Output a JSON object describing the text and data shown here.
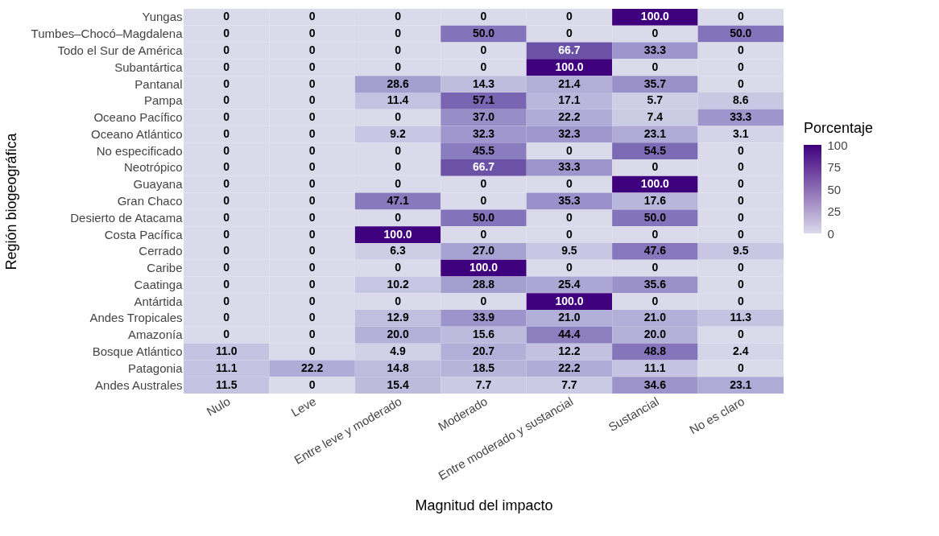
{
  "chart_data": {
    "type": "heatmap",
    "xlabel": "Magnitud del impacto",
    "ylabel": "Región biogeográfica",
    "legend_title": "Porcentaje",
    "categories": [
      "Nulo",
      "Leve",
      "Entre leve y moderado",
      "Moderado",
      "Entre moderado y sustancial",
      "Sustancial",
      "No es claro"
    ],
    "y_categories": [
      "Yungas",
      "Tumbes–Chocó–Magdalena",
      "Todo el Sur de América",
      "Subantártica",
      "Pantanal",
      "Pampa",
      "Oceano Pacífico",
      "Oceano Atlántico",
      "No especificado",
      "Neotrópico",
      "Guayana",
      "Gran Chaco",
      "Desierto de Atacama",
      "Costa Pacífica",
      "Cerrado",
      "Caribe",
      "Caatinga",
      "Antártida",
      "Andes Tropicales",
      "Amazonía",
      "Bosque Atlántico",
      "Patagonia",
      "Andes Australes"
    ],
    "cells": [
      [
        0,
        0,
        0,
        0,
        0,
        100,
        0
      ],
      [
        0,
        0,
        0,
        50,
        0,
        0,
        50
      ],
      [
        0,
        0,
        0,
        0,
        66.7,
        33.3,
        0
      ],
      [
        0,
        0,
        0,
        0,
        100,
        0,
        0
      ],
      [
        0,
        0,
        28.6,
        14.3,
        21.4,
        35.7,
        0
      ],
      [
        0,
        0,
        11.4,
        57.1,
        17.1,
        5.7,
        8.6
      ],
      [
        0,
        0,
        0,
        37.0,
        22.2,
        7.4,
        33.3
      ],
      [
        0,
        0,
        9.2,
        32.3,
        32.3,
        23.1,
        3.1
      ],
      [
        0,
        0,
        0,
        45.5,
        0,
        54.5,
        0
      ],
      [
        0,
        0,
        0,
        66.7,
        33.3,
        0,
        0
      ],
      [
        0,
        0,
        0,
        0,
        0,
        100,
        0
      ],
      [
        0,
        0,
        47.1,
        0,
        35.3,
        17.6,
        0
      ],
      [
        0,
        0,
        0,
        50,
        0,
        50,
        0
      ],
      [
        0,
        0,
        100,
        0,
        0,
        0,
        0
      ],
      [
        0,
        0,
        6.3,
        27.0,
        9.5,
        47.6,
        9.5
      ],
      [
        0,
        0,
        0,
        100,
        0,
        0,
        0
      ],
      [
        0,
        0,
        10.2,
        28.8,
        25.4,
        35.6,
        0
      ],
      [
        0,
        0,
        0,
        0,
        100,
        0,
        0
      ],
      [
        0,
        0,
        12.9,
        33.9,
        21.0,
        21.0,
        11.3
      ],
      [
        0,
        0,
        20.0,
        15.6,
        44.4,
        20.0,
        0
      ],
      [
        11.0,
        0,
        4.9,
        20.7,
        12.2,
        48.8,
        2.4
      ],
      [
        11.1,
        22.2,
        14.8,
        18.5,
        22.2,
        11.1,
        0
      ],
      [
        11.5,
        0,
        15.4,
        7.7,
        7.7,
        34.6,
        23.1
      ]
    ],
    "cell_labels": [
      [
        "0",
        "0",
        "0",
        "0",
        "0",
        "100.0",
        "0"
      ],
      [
        "0",
        "0",
        "0",
        "50.0",
        "0",
        "0",
        "50.0"
      ],
      [
        "0",
        "0",
        "0",
        "0",
        "66.7",
        "33.3",
        "0"
      ],
      [
        "0",
        "0",
        "0",
        "0",
        "100.0",
        "0",
        "0"
      ],
      [
        "0",
        "0",
        "28.6",
        "14.3",
        "21.4",
        "35.7",
        "0"
      ],
      [
        "0",
        "0",
        "11.4",
        "57.1",
        "17.1",
        "5.7",
        "8.6"
      ],
      [
        "0",
        "0",
        "0",
        "37.0",
        "22.2",
        "7.4",
        "33.3"
      ],
      [
        "0",
        "0",
        "9.2",
        "32.3",
        "32.3",
        "23.1",
        "3.1"
      ],
      [
        "0",
        "0",
        "0",
        "45.5",
        "0",
        "54.5",
        "0"
      ],
      [
        "0",
        "0",
        "0",
        "66.7",
        "33.3",
        "0",
        "0"
      ],
      [
        "0",
        "0",
        "0",
        "0",
        "0",
        "100.0",
        "0"
      ],
      [
        "0",
        "0",
        "47.1",
        "0",
        "35.3",
        "17.6",
        "0"
      ],
      [
        "0",
        "0",
        "0",
        "50.0",
        "0",
        "50.0",
        "0"
      ],
      [
        "0",
        "0",
        "100.0",
        "0",
        "0",
        "0",
        "0"
      ],
      [
        "0",
        "0",
        "6.3",
        "27.0",
        "9.5",
        "47.6",
        "9.5"
      ],
      [
        "0",
        "0",
        "0",
        "100.0",
        "0",
        "0",
        "0"
      ],
      [
        "0",
        "0",
        "10.2",
        "28.8",
        "25.4",
        "35.6",
        "0"
      ],
      [
        "0",
        "0",
        "0",
        "0",
        "100.0",
        "0",
        "0"
      ],
      [
        "0",
        "0",
        "12.9",
        "33.9",
        "21.0",
        "21.0",
        "11.3"
      ],
      [
        "0",
        "0",
        "20.0",
        "15.6",
        "44.4",
        "20.0",
        "0"
      ],
      [
        "11.0",
        "0",
        "4.9",
        "20.7",
        "12.2",
        "48.8",
        "2.4"
      ],
      [
        "11.1",
        "22.2",
        "14.8",
        "18.5",
        "22.2",
        "11.1",
        "0"
      ],
      [
        "11.5",
        "0",
        "15.4",
        "7.7",
        "7.7",
        "34.6",
        "23.1"
      ]
    ],
    "clim": [
      0,
      100
    ],
    "cticks": [
      0,
      25,
      50,
      75,
      100
    ],
    "colors": [
      "#dadaeb",
      "#3f007d"
    ]
  }
}
